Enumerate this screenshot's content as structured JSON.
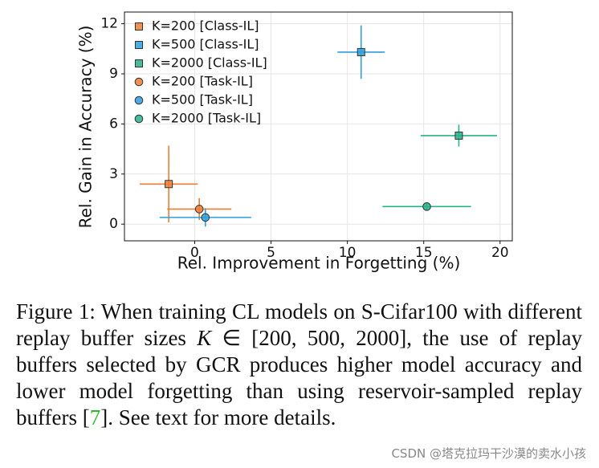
{
  "chart_data": {
    "type": "scatter",
    "xlabel": "Rel. Improvement in Forgetting (%)",
    "ylabel": "Rel. Gain in Accuracy (%)",
    "xlim": [
      -4.6,
      20.8
    ],
    "ylim": [
      -1,
      12.7
    ],
    "xticks": [
      0,
      5,
      10,
      15,
      20
    ],
    "yticks": [
      0,
      3,
      6,
      9,
      12
    ],
    "grid": true,
    "legend": "upper left",
    "series": [
      {
        "name": "K=200 [Class-IL]",
        "color": "#ee7d32",
        "marker": "square",
        "x": [
          -1.7
        ],
        "values": [
          2.4
        ],
        "xerr": [
          1.9
        ],
        "yerr": [
          2.3
        ]
      },
      {
        "name": "K=500 [Class-IL]",
        "color": "#2b9fe0",
        "marker": "square",
        "x": [
          10.9
        ],
        "values": [
          10.3
        ],
        "xerr": [
          1.55
        ],
        "yerr": [
          1.6
        ]
      },
      {
        "name": "K=2000 [Class-IL]",
        "color": "#26b38a",
        "marker": "square",
        "x": [
          17.3
        ],
        "values": [
          5.3
        ],
        "xerr": [
          2.5
        ],
        "yerr": [
          0.65
        ]
      },
      {
        "name": "K=200 [Task-IL]",
        "color": "#ee7d32",
        "marker": "circle",
        "x": [
          0.3
        ],
        "values": [
          0.9
        ],
        "xerr": [
          2.1
        ],
        "yerr": [
          0.65
        ]
      },
      {
        "name": "K=500 [Task-IL]",
        "color": "#2b9fe0",
        "marker": "circle",
        "x": [
          0.7
        ],
        "values": [
          0.4
        ],
        "xerr": [
          3.0
        ],
        "yerr": [
          0.55
        ]
      },
      {
        "name": "K=2000 [Task-IL]",
        "color": "#26b38a",
        "marker": "circle",
        "x": [
          15.2
        ],
        "values": [
          1.05
        ],
        "xerr": [
          2.9
        ],
        "yerr": [
          0.25
        ]
      }
    ]
  },
  "caption": {
    "text_before": "Figure 1: When training CL models on S-Cifar100 with different replay buffer sizes ",
    "math_var": "K",
    "math_rest": " ∈ [200, 500, 2000]",
    "text_middle": ", the use of replay buffers selected by GCR produces higher model accuracy and lower model forgetting than using reservoir-sampled replay buffers [",
    "citation": "7",
    "text_after": "]. See text for more details."
  },
  "watermark": "CSDN @塔克拉玛干沙漠的卖水小孩"
}
